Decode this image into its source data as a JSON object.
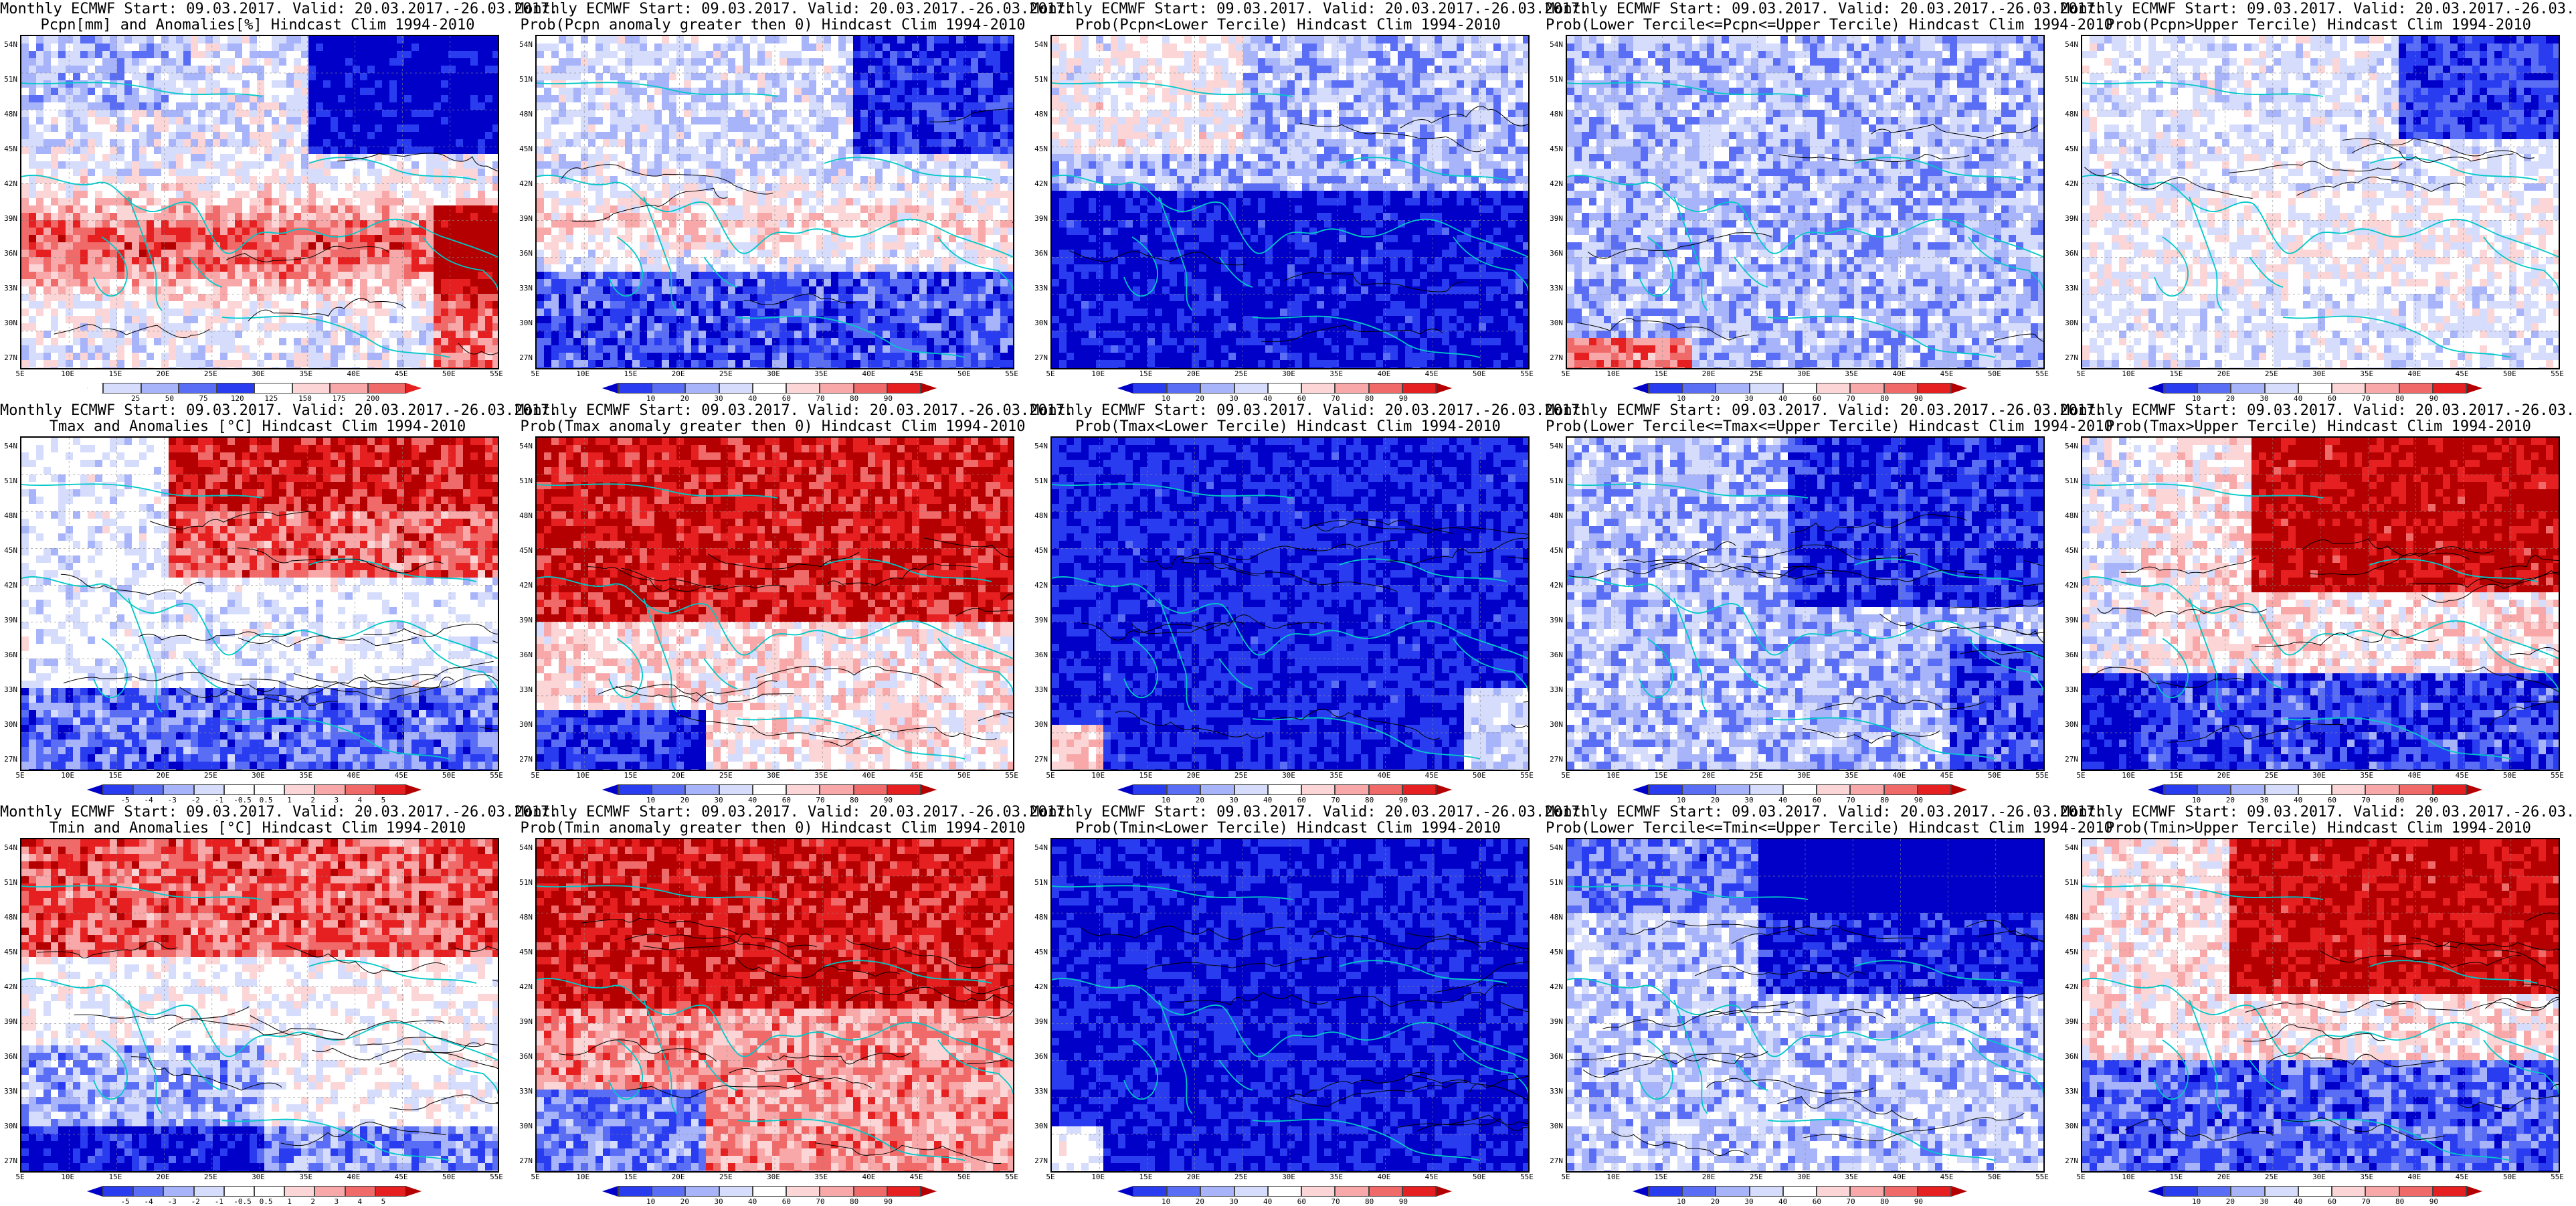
{
  "row_titles": {
    "line1": "Monthly ECMWF Start: 09.03.2017. Valid: 20.03.2017.-26.03.2017."
  },
  "panels": [
    {
      "title2": "Pcpn[mm] and Anomalies[%] Hindcast Clim 1994-2010",
      "palette": "anom_pcpn",
      "ticks": [
        "25",
        "50",
        "75",
        "120",
        "125",
        "150",
        "175",
        "200"
      ]
    },
    {
      "title2": "Prob(Pcpn anomaly greater then 0) Hindcast Clim 1994-2010",
      "palette": "prob",
      "ticks": [
        "10",
        "20",
        "30",
        "40",
        "60",
        "70",
        "80",
        "90"
      ]
    },
    {
      "title2": "Prob(Pcpn<Lower Tercile) Hindcast Clim 1994-2010",
      "palette": "prob",
      "ticks": [
        "10",
        "20",
        "30",
        "40",
        "60",
        "70",
        "80",
        "90"
      ]
    },
    {
      "title2": "Prob(Lower Tercile<=Pcpn<=Upper Tercile) Hindcast Clim 1994-2010",
      "palette": "prob",
      "ticks": [
        "10",
        "20",
        "30",
        "40",
        "60",
        "70",
        "80",
        "90"
      ]
    },
    {
      "title2": "Prob(Pcpn>Upper Tercile) Hindcast Clim 1994-2010",
      "palette": "prob",
      "ticks": [
        "10",
        "20",
        "30",
        "40",
        "60",
        "70",
        "80",
        "90"
      ]
    },
    {
      "title2": "Tmax and Anomalies [°C] Hindcast Clim 1994-2010",
      "palette": "anom_t",
      "ticks": [
        "-5",
        "-4",
        "-3",
        "-2",
        "-1",
        "-0.5",
        "0.5",
        "1",
        "2",
        "3",
        "4",
        "5"
      ]
    },
    {
      "title2": "Prob(Tmax anomaly greater then 0) Hindcast Clim 1994-2010",
      "palette": "prob",
      "ticks": [
        "10",
        "20",
        "30",
        "40",
        "60",
        "70",
        "80",
        "90"
      ]
    },
    {
      "title2": "Prob(Tmax<Lower Tercile) Hindcast Clim 1994-2010",
      "palette": "prob",
      "ticks": [
        "10",
        "20",
        "30",
        "40",
        "60",
        "70",
        "80",
        "90"
      ]
    },
    {
      "title2": "Prob(Lower Tercile<=Tmax<=Upper Tercile) Hindcast Clim 1994-2010",
      "palette": "prob",
      "ticks": [
        "10",
        "20",
        "30",
        "40",
        "60",
        "70",
        "80",
        "90"
      ]
    },
    {
      "title2": "Prob(Tmax>Upper Tercile) Hindcast Clim 1994-2010",
      "palette": "prob",
      "ticks": [
        "10",
        "20",
        "30",
        "40",
        "60",
        "70",
        "80",
        "90"
      ]
    },
    {
      "title2": "Tmin and Anomalies [°C] Hindcast Clim 1994-2010",
      "palette": "anom_t",
      "ticks": [
        "-5",
        "-4",
        "-3",
        "-2",
        "-1",
        "-0.5",
        "0.5",
        "1",
        "2",
        "3",
        "4",
        "5"
      ]
    },
    {
      "title2": "Prob(Tmin anomaly greater then 0) Hindcast Clim 1994-2010",
      "palette": "prob",
      "ticks": [
        "10",
        "20",
        "30",
        "40",
        "60",
        "70",
        "80",
        "90"
      ]
    },
    {
      "title2": "Prob(Tmin<Lower Tercile) Hindcast Clim 1994-2010",
      "palette": "prob",
      "ticks": [
        "10",
        "20",
        "30",
        "40",
        "60",
        "70",
        "80",
        "90"
      ]
    },
    {
      "title2": "Prob(Lower Tercile<=Tmin<=Upper Tercile) Hindcast Clim 1994-2010",
      "palette": "prob",
      "ticks": [
        "10",
        "20",
        "30",
        "40",
        "60",
        "70",
        "80",
        "90"
      ]
    },
    {
      "title2": "Prob(Tmin>Upper Tercile) Hindcast Clim 1994-2010",
      "palette": "prob",
      "ticks": [
        "10",
        "20",
        "30",
        "40",
        "60",
        "70",
        "80",
        "90"
      ]
    }
  ],
  "lat_labels": [
    "54N",
    "51N",
    "48N",
    "45N",
    "42N",
    "39N",
    "36N",
    "33N",
    "30N",
    "27N"
  ],
  "lon_labels": [
    "5E",
    "10E",
    "15E",
    "20E",
    "25E",
    "30E",
    "35E",
    "40E",
    "45E",
    "50E",
    "55E"
  ],
  "colors": {
    "deep_blue": "#0000c8",
    "blue": "#2a3cf0",
    "mid_blue": "#5a6ef5",
    "light_blue": "#a8b4fa",
    "pale_blue": "#d6dcfc",
    "white": "#ffffff",
    "pale_red": "#fcd6d6",
    "light_red": "#f8a8a8",
    "mid_red": "#f06a6a",
    "red": "#e62020",
    "dark_red": "#b40000",
    "coast": "#00c8c8",
    "contour": "#000000"
  },
  "fields": [
    {
      "pattern": "pcpn_anom"
    },
    {
      "pattern": "pcpn_prob"
    },
    {
      "pattern": "pcpn_lower"
    },
    {
      "pattern": "pcpn_mid"
    },
    {
      "pattern": "pcpn_upper"
    },
    {
      "pattern": "t_warm_north"
    },
    {
      "pattern": "t_warm_north_strong"
    },
    {
      "pattern": "t_lower"
    },
    {
      "pattern": "t_mid"
    },
    {
      "pattern": "t_upper"
    },
    {
      "pattern": "tn_warm"
    },
    {
      "pattern": "tn_warm_strong"
    },
    {
      "pattern": "tn_lower"
    },
    {
      "pattern": "tn_mid"
    },
    {
      "pattern": "tn_upper"
    }
  ]
}
